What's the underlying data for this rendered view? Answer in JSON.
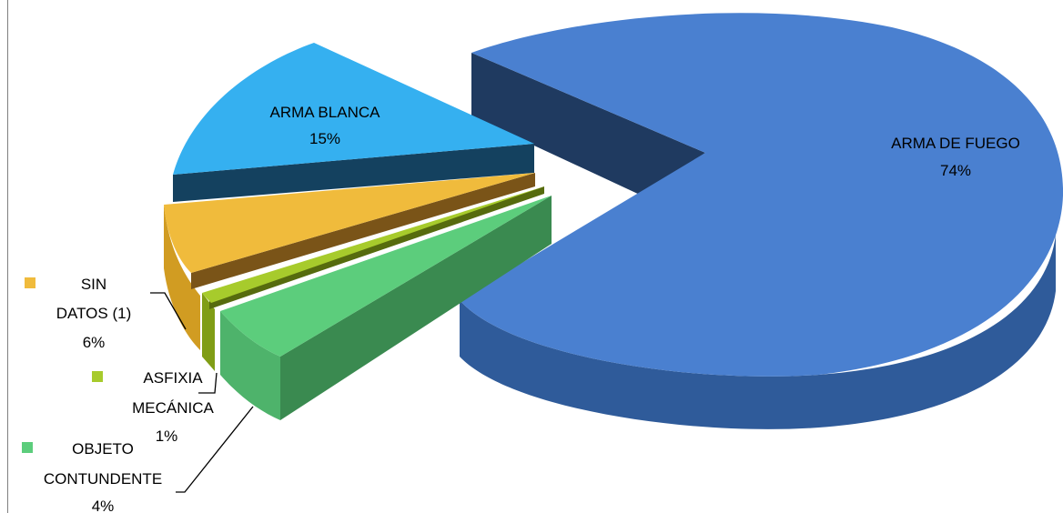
{
  "chart_data": {
    "type": "pie",
    "title": "",
    "slices": [
      {
        "label": "ARMA DE FUEGO",
        "percent_label": "74%",
        "value": 74,
        "color": "#4a80d0"
      },
      {
        "label": "OBJETO CONTUNDENTE",
        "percent_label": "4%",
        "value": 4,
        "color": "#5ccd7c"
      },
      {
        "label": "ASFIXIA MECÁNICA",
        "percent_label": "1%",
        "value": 1,
        "color": "#a7cb2c"
      },
      {
        "label": "SIN DATOS (1)",
        "percent_label": "6%",
        "value": 6,
        "color": "#f0bb3c"
      },
      {
        "label": "ARMA BLANCA",
        "percent_label": "15%",
        "value": 15,
        "color": "#35b0f0"
      }
    ],
    "legend": "labels-on-slices",
    "style": "3d-exploded"
  }
}
